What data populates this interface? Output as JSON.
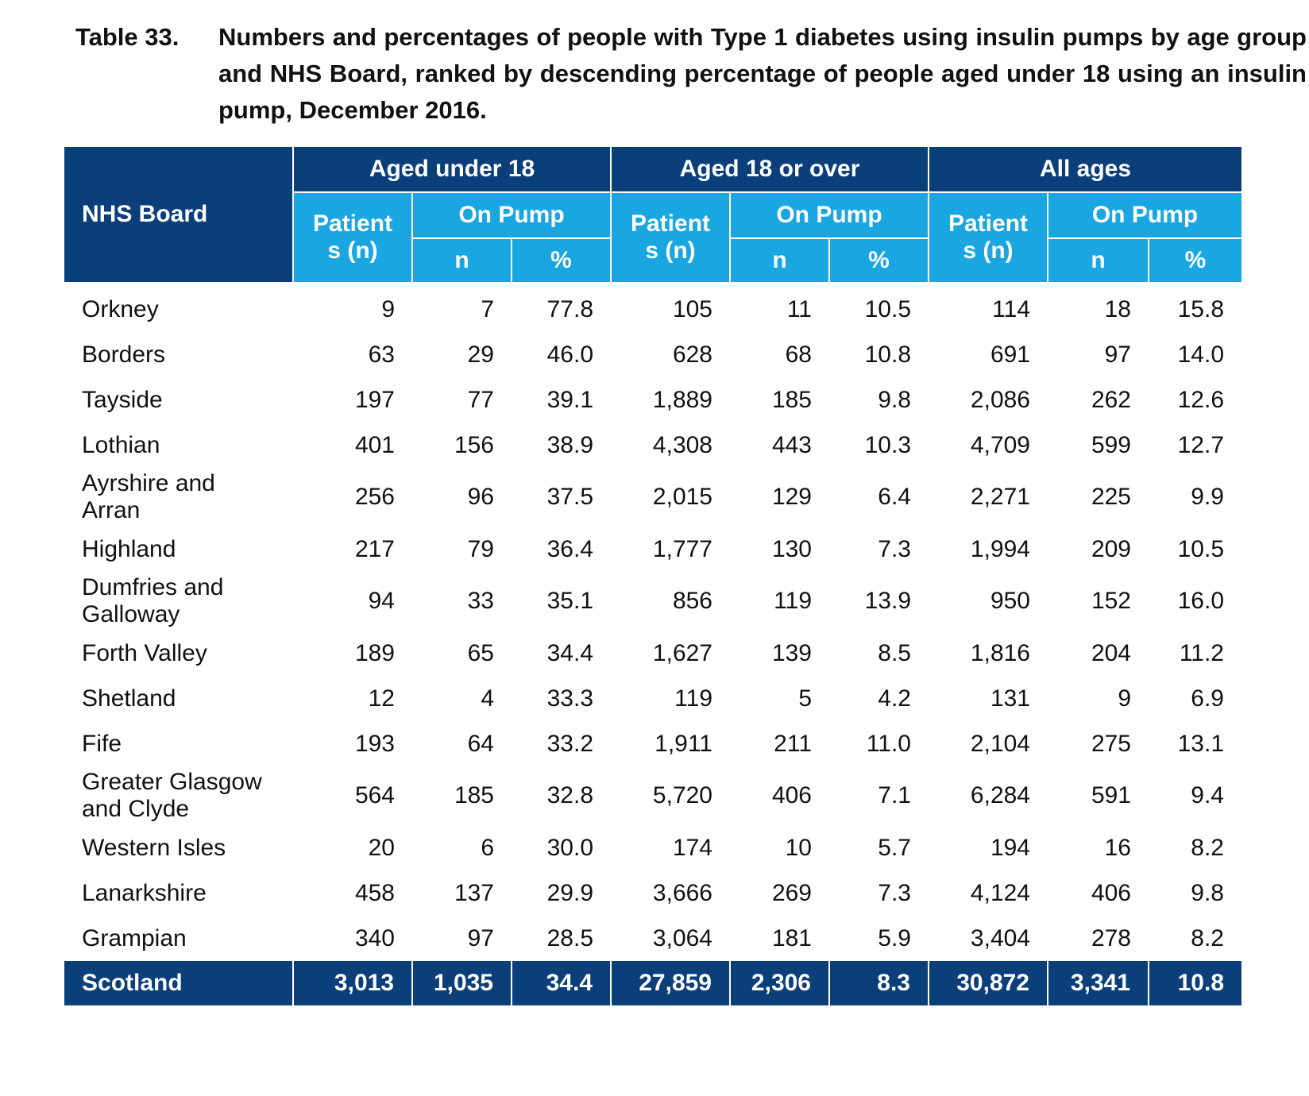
{
  "caption": {
    "number": "Table 33.",
    "text": "Numbers and percentages of people with Type 1 diabetes using insulin pumps by age group and NHS Board, ranked by descending percentage of people aged under 18 using an insulin pump, December 2016."
  },
  "header": {
    "board": "NHS Board",
    "groups": [
      "Aged under 18",
      "Aged 18 or over",
      "All ages"
    ],
    "patients_line1": "Patient",
    "patients_line2": "s (n)",
    "on_pump": "On Pump",
    "n": "n",
    "pct": "%"
  },
  "rows": [
    {
      "board": [
        "Orkney"
      ],
      "u18": [
        "9",
        "7",
        "77.8"
      ],
      "o18": [
        "105",
        "11",
        "10.5"
      ],
      "all": [
        "114",
        "18",
        "15.8"
      ]
    },
    {
      "board": [
        "Borders"
      ],
      "u18": [
        "63",
        "29",
        "46.0"
      ],
      "o18": [
        "628",
        "68",
        "10.8"
      ],
      "all": [
        "691",
        "97",
        "14.0"
      ]
    },
    {
      "board": [
        "Tayside"
      ],
      "u18": [
        "197",
        "77",
        "39.1"
      ],
      "o18": [
        "1,889",
        "185",
        "9.8"
      ],
      "all": [
        "2,086",
        "262",
        "12.6"
      ]
    },
    {
      "board": [
        "Lothian"
      ],
      "u18": [
        "401",
        "156",
        "38.9"
      ],
      "o18": [
        "4,308",
        "443",
        "10.3"
      ],
      "all": [
        "4,709",
        "599",
        "12.7"
      ]
    },
    {
      "board": [
        "Ayrshire and",
        "Arran"
      ],
      "u18": [
        "256",
        "96",
        "37.5"
      ],
      "o18": [
        "2,015",
        "129",
        "6.4"
      ],
      "all": [
        "2,271",
        "225",
        "9.9"
      ]
    },
    {
      "board": [
        "Highland"
      ],
      "u18": [
        "217",
        "79",
        "36.4"
      ],
      "o18": [
        "1,777",
        "130",
        "7.3"
      ],
      "all": [
        "1,994",
        "209",
        "10.5"
      ]
    },
    {
      "board": [
        "Dumfries and",
        "Galloway"
      ],
      "u18": [
        "94",
        "33",
        "35.1"
      ],
      "o18": [
        "856",
        "119",
        "13.9"
      ],
      "all": [
        "950",
        "152",
        "16.0"
      ]
    },
    {
      "board": [
        "Forth Valley"
      ],
      "u18": [
        "189",
        "65",
        "34.4"
      ],
      "o18": [
        "1,627",
        "139",
        "8.5"
      ],
      "all": [
        "1,816",
        "204",
        "11.2"
      ]
    },
    {
      "board": [
        "Shetland"
      ],
      "u18": [
        "12",
        "4",
        "33.3"
      ],
      "o18": [
        "119",
        "5",
        "4.2"
      ],
      "all": [
        "131",
        "9",
        "6.9"
      ]
    },
    {
      "board": [
        "Fife"
      ],
      "u18": [
        "193",
        "64",
        "33.2"
      ],
      "o18": [
        "1,911",
        "211",
        "11.0"
      ],
      "all": [
        "2,104",
        "275",
        "13.1"
      ]
    },
    {
      "board": [
        "Greater Glasgow",
        "and Clyde"
      ],
      "u18": [
        "564",
        "185",
        "32.8"
      ],
      "o18": [
        "5,720",
        "406",
        "7.1"
      ],
      "all": [
        "6,284",
        "591",
        "9.4"
      ]
    },
    {
      "board": [
        "Western Isles"
      ],
      "u18": [
        "20",
        "6",
        "30.0"
      ],
      "o18": [
        "174",
        "10",
        "5.7"
      ],
      "all": [
        "194",
        "16",
        "8.2"
      ]
    },
    {
      "board": [
        "Lanarkshire"
      ],
      "u18": [
        "458",
        "137",
        "29.9"
      ],
      "o18": [
        "3,666",
        "269",
        "7.3"
      ],
      "all": [
        "4,124",
        "406",
        "9.8"
      ]
    },
    {
      "board": [
        "Grampian"
      ],
      "u18": [
        "340",
        "97",
        "28.5"
      ],
      "o18": [
        "3,064",
        "181",
        "5.9"
      ],
      "all": [
        "3,404",
        "278",
        "8.2"
      ]
    }
  ],
  "total": {
    "board": "Scotland",
    "u18": [
      "3,013",
      "1,035",
      "34.4"
    ],
    "o18": [
      "27,859",
      "2,306",
      "8.3"
    ],
    "all": [
      "30,872",
      "3,341",
      "10.8"
    ]
  },
  "colors": {
    "dark_blue": "#0b3f7a",
    "light_blue": "#19a6e1"
  }
}
